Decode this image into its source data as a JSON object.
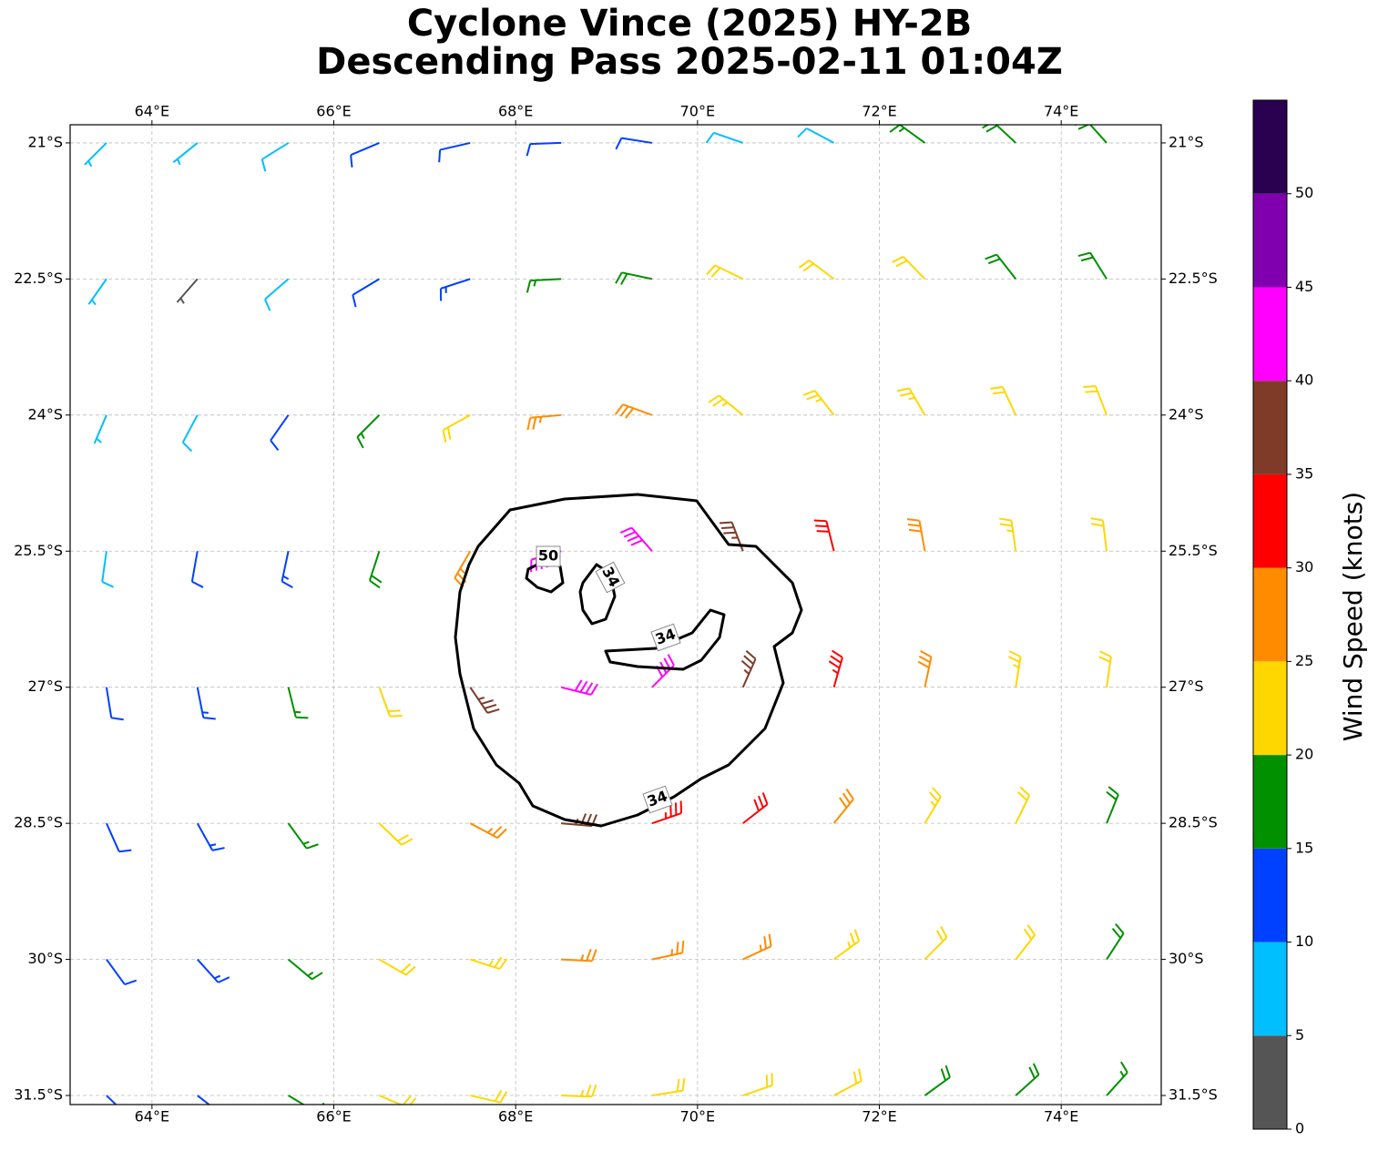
{
  "chart_data": {
    "type": "barbs",
    "title": "Cyclone Vince (2025) HY-2B",
    "subtitle": "Descending Pass 2025-02-11 01:04Z",
    "xlim": [
      63.1,
      75.1
    ],
    "ylim": [
      -31.6,
      -20.8
    ],
    "xticks": [
      {
        "value": 64,
        "label": "64°E"
      },
      {
        "value": 66,
        "label": "66°E"
      },
      {
        "value": 68,
        "label": "68°E"
      },
      {
        "value": 70,
        "label": "70°E"
      },
      {
        "value": 72,
        "label": "72°E"
      },
      {
        "value": 74,
        "label": "74°E"
      }
    ],
    "yticks": [
      {
        "value": -21,
        "label": "21°S"
      },
      {
        "value": -22.5,
        "label": "22.5°S"
      },
      {
        "value": -24,
        "label": "24°S"
      },
      {
        "value": -25.5,
        "label": "25.5°S"
      },
      {
        "value": -27,
        "label": "27°S"
      },
      {
        "value": -28.5,
        "label": "28.5°S"
      },
      {
        "value": -30,
        "label": "30°S"
      },
      {
        "value": -31.5,
        "label": "31.5°S"
      }
    ],
    "grid": true,
    "barbs": {
      "lon": [
        63.5,
        64.5,
        65.5,
        66.5,
        67.5,
        68.5,
        69.5,
        70.5,
        71.5,
        72.5,
        73.5,
        74.5
      ],
      "lat": [
        -21,
        -22.5,
        -24,
        -25.5,
        -27,
        -28.5,
        -30,
        -31.5
      ],
      "speed": [
        [
          7,
          7,
          9,
          12,
          12,
          12,
          10,
          8,
          9,
          17,
          18,
          18
        ],
        [
          7,
          4,
          8,
          12,
          13,
          16,
          18,
          21,
          22,
          22,
          19,
          18
        ],
        [
          6,
          8,
          11,
          16,
          22,
          27,
          28,
          24,
          23,
          23,
          22,
          21
        ],
        [
          9,
          12,
          14,
          18,
          27,
          43,
          42,
          37,
          32,
          28,
          24,
          22
        ],
        [
          12,
          13,
          17,
          22,
          36,
          41,
          42,
          37,
          33,
          28,
          24,
          22
        ],
        [
          12,
          14,
          17,
          22,
          27,
          36,
          33,
          31,
          28,
          24,
          22,
          19
        ],
        [
          12,
          13,
          17,
          21,
          24,
          26,
          27,
          26,
          23,
          22,
          21,
          19
        ],
        [
          12,
          13,
          16,
          21,
          22,
          23,
          22,
          21,
          21,
          19,
          18,
          17
        ]
      ],
      "direction": [
        [
          225,
          231,
          238,
          247,
          257,
          268,
          279,
          289,
          298,
          306,
          313,
          318
        ],
        [
          215,
          221,
          229,
          239,
          252,
          267,
          282,
          296,
          307,
          316,
          322,
          328
        ],
        [
          203,
          208,
          215,
          225,
          241,
          265,
          290,
          309,
          322,
          330,
          335,
          339
        ],
        [
          188,
          190,
          192,
          198,
          210,
          254,
          319,
          339,
          346,
          350,
          352,
          353
        ],
        [
          171,
          169,
          166,
          160,
          146,
          104,
          45,
          24,
          16,
          12,
          9,
          8
        ],
        [
          156,
          151,
          144,
          134,
          118,
          95,
          71,
          52,
          39,
          31,
          26,
          22
        ],
        [
          144,
          138,
          130,
          120,
          108,
          93,
          78,
          65,
          54,
          45,
          38,
          33
        ],
        [
          134,
          128,
          121,
          113,
          103,
          92,
          81,
          71,
          62,
          54,
          48,
          42
        ]
      ]
    },
    "contour_labels": [
      50,
      34,
      34,
      34
    ],
    "colorbar": {
      "label": "Wind Speed (knots)",
      "levels": [
        0,
        5,
        10,
        15,
        20,
        25,
        30,
        35,
        40,
        45,
        50,
        55
      ],
      "colors": [
        "#555555",
        "#00bfff",
        "#0040ff",
        "#009000",
        "#ffd700",
        "#ff8c00",
        "#ff0000",
        "#7f3b28",
        "#ff00ff",
        "#8000b0",
        "#2a0050"
      ],
      "ylim": [
        0,
        55
      ],
      "yticks": [
        0,
        5,
        10,
        15,
        20,
        25,
        30,
        35,
        40,
        45,
        50
      ]
    }
  }
}
